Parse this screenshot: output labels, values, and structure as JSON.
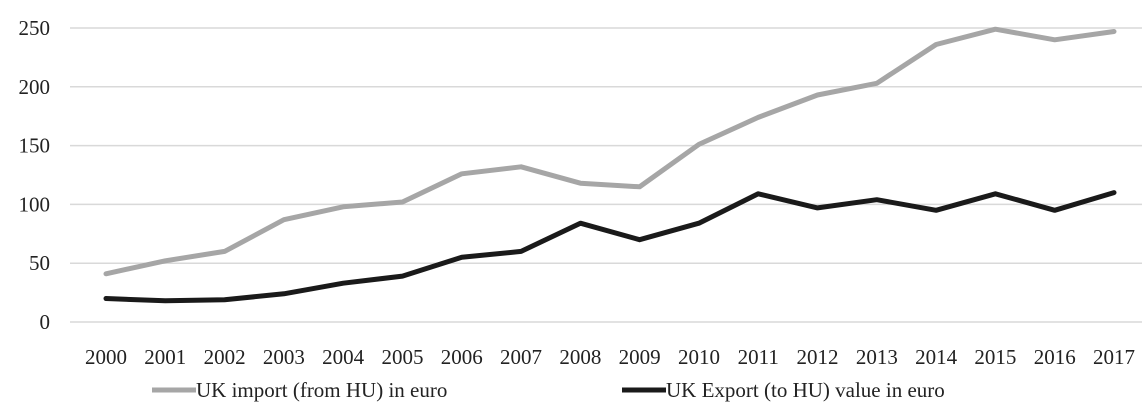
{
  "chart_data": {
    "type": "line",
    "title": "",
    "xlabel": "",
    "ylabel": "",
    "x": [
      "2000",
      "2001",
      "2002",
      "2003",
      "2004",
      "2005",
      "2006",
      "2007",
      "2008",
      "2009",
      "2010",
      "2011",
      "2012",
      "2013",
      "2014",
      "2015",
      "2016",
      "2017"
    ],
    "ylim": [
      0,
      250
    ],
    "yticks": [
      "0",
      "50",
      "100",
      "150",
      "200",
      "250"
    ],
    "grid": true,
    "legend": "bottom",
    "series": [
      {
        "name": "UK import (from HU) in euro",
        "color": "#a6a6a6",
        "values": [
          41,
          52,
          60,
          87,
          98,
          102,
          126,
          132,
          118,
          115,
          151,
          174,
          193,
          203,
          236,
          249,
          240,
          247
        ]
      },
      {
        "name": "UK Export (to HU) value in euro",
        "color": "#1a1a1a",
        "values": [
          20,
          18,
          19,
          24,
          33,
          39,
          55,
          60,
          84,
          70,
          84,
          109,
          97,
          104,
          95,
          109,
          95,
          110
        ]
      }
    ]
  }
}
